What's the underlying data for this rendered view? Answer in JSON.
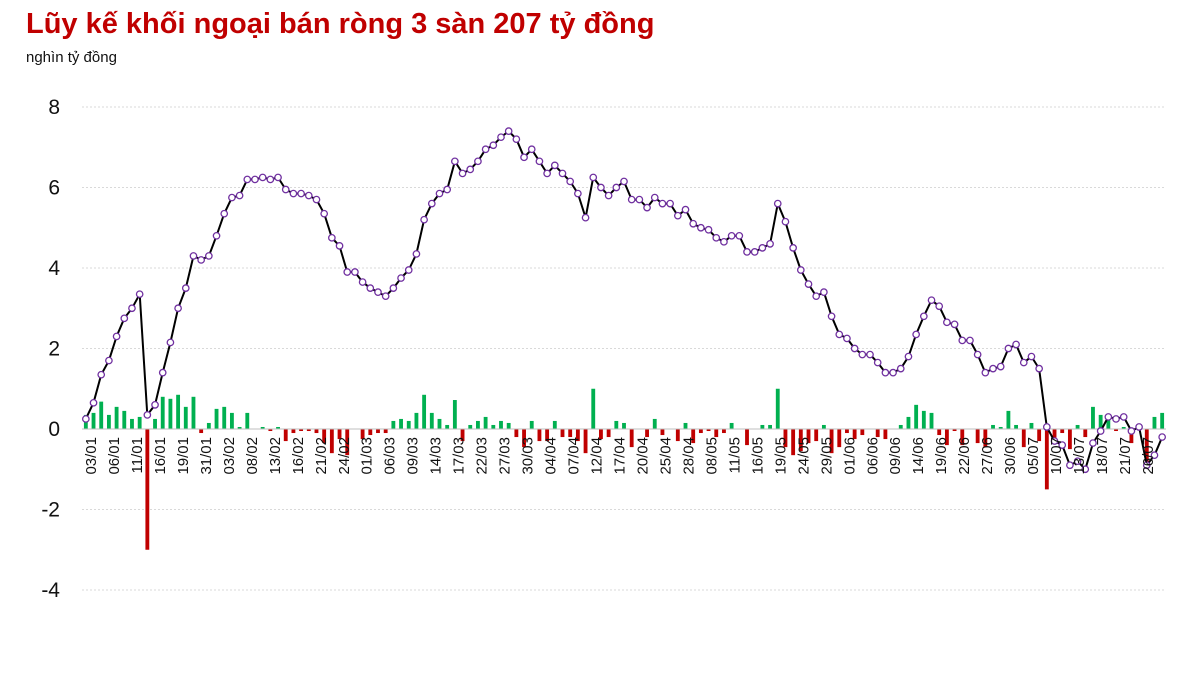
{
  "title": "Lũy kế khối ngoại bán ròng 3 sàn 207 tỷ đồng",
  "unit_label": "nghìn tỷ đồng",
  "colors": {
    "title": "#c00000",
    "line": "#000000",
    "marker_stroke": "#7030a0",
    "bar_positive": "#00b050",
    "bar_negative": "#c00000",
    "grid": "#d9d9d9"
  },
  "chart_data": {
    "type": "bar+line",
    "title": "Lũy kế khối ngoại bán ròng 3 sàn 207 tỷ đồng",
    "ylabel": "nghìn tỷ đồng",
    "ylim": [
      -4,
      8
    ],
    "yticks": [
      -4,
      -2,
      0,
      2,
      4,
      6,
      8
    ],
    "grid": true,
    "xticks": [
      "03/01",
      "06/01",
      "11/01",
      "16/01",
      "19/01",
      "31/01",
      "03/02",
      "08/02",
      "13/02",
      "16/02",
      "21/02",
      "24/02",
      "01/03",
      "06/03",
      "09/03",
      "14/03",
      "17/03",
      "22/03",
      "27/03",
      "30/03",
      "04/04",
      "07/04",
      "12/04",
      "17/04",
      "20/04",
      "25/04",
      "28/04",
      "08/05",
      "11/05",
      "16/05",
      "19/05",
      "24/05",
      "29/05",
      "01/06",
      "06/06",
      "09/06",
      "14/06",
      "19/06",
      "22/06",
      "27/06",
      "30/06",
      "05/07",
      "10/07",
      "13/07",
      "18/07",
      "21/07",
      "26/07"
    ],
    "series": [
      {
        "kind": "line",
        "values": [
          0.25,
          0.65,
          1.35,
          1.7,
          2.3,
          2.75,
          3.0,
          3.35,
          0.35,
          0.6,
          1.4,
          2.15,
          3.0,
          3.5,
          4.3,
          4.2,
          4.3,
          4.8,
          5.35,
          5.75,
          5.8,
          6.2,
          6.2,
          6.25,
          6.2,
          6.25,
          5.95,
          5.85,
          5.85,
          5.8,
          5.7,
          5.35,
          4.75,
          4.55,
          3.9,
          3.9,
          3.65,
          3.5,
          3.4,
          3.3,
          3.5,
          3.75,
          3.95,
          4.35,
          5.2,
          5.6,
          5.85,
          5.95,
          6.65,
          6.35,
          6.45,
          6.65,
          6.95,
          7.05,
          7.25,
          7.4,
          7.2,
          6.75,
          6.95,
          6.65,
          6.35,
          6.55,
          6.35,
          6.15,
          5.85,
          5.25,
          6.25,
          6.0,
          5.8,
          6.0,
          6.15,
          5.7,
          5.7,
          5.5,
          5.75,
          5.6,
          5.6,
          5.3,
          5.45,
          5.1,
          5.0,
          4.95,
          4.75,
          4.65,
          4.8,
          4.8,
          4.4,
          4.4,
          4.5,
          4.6,
          5.6,
          5.15,
          4.5,
          3.95,
          3.6,
          3.3,
          3.4,
          2.8,
          2.35,
          2.25,
          2.0,
          1.85,
          1.85,
          1.65,
          1.4,
          1.4,
          1.5,
          1.8,
          2.35,
          2.8,
          3.2,
          3.05,
          2.65,
          2.6,
          2.2,
          2.2,
          1.85,
          1.4,
          1.5,
          1.55,
          2.0,
          2.1,
          1.65,
          1.8,
          1.5,
          0.05,
          -0.3,
          -0.4,
          -0.9,
          -0.8,
          -1.0,
          -0.35,
          -0.05,
          0.3,
          0.25,
          0.3,
          -0.05,
          0.05,
          -0.9,
          -0.65,
          -0.2
        ]
      },
      {
        "kind": "bar",
        "values": [
          0.35,
          0.4,
          0.68,
          0.35,
          0.55,
          0.45,
          0.25,
          0.3,
          -3.0,
          0.25,
          0.8,
          0.75,
          0.85,
          0.55,
          0.8,
          -0.1,
          0.15,
          0.5,
          0.55,
          0.4,
          0.05,
          0.4,
          0.0,
          0.05,
          -0.05,
          0.05,
          -0.3,
          -0.1,
          -0.05,
          -0.05,
          -0.1,
          -0.35,
          -0.6,
          -0.25,
          -0.65,
          0.0,
          -0.25,
          -0.15,
          -0.1,
          -0.1,
          0.2,
          0.25,
          0.2,
          0.4,
          0.85,
          0.4,
          0.25,
          0.1,
          0.72,
          -0.3,
          0.1,
          0.2,
          0.3,
          0.1,
          0.2,
          0.15,
          -0.2,
          -0.45,
          0.2,
          -0.3,
          -0.3,
          0.2,
          -0.2,
          -0.2,
          -0.3,
          -0.6,
          1.0,
          -0.25,
          -0.2,
          0.2,
          0.15,
          -0.45,
          0.0,
          -0.2,
          0.25,
          -0.15,
          0.0,
          -0.3,
          0.15,
          -0.35,
          -0.1,
          -0.05,
          -0.2,
          -0.1,
          0.15,
          0.0,
          -0.4,
          0.0,
          0.1,
          0.1,
          1.0,
          -0.45,
          -0.65,
          -0.55,
          -0.35,
          -0.3,
          0.1,
          -0.6,
          -0.45,
          -0.1,
          -0.25,
          -0.15,
          0.0,
          -0.2,
          -0.25,
          0.0,
          0.1,
          0.3,
          0.6,
          0.45,
          0.4,
          -0.15,
          -0.4,
          -0.05,
          -0.4,
          0.0,
          -0.35,
          -0.45,
          0.1,
          0.05,
          0.45,
          0.1,
          -0.45,
          0.15,
          -0.3,
          -1.5,
          -0.35,
          -0.1,
          -0.5,
          0.1,
          -0.2,
          0.55,
          0.35,
          0.35,
          -0.05,
          0.05,
          -0.35,
          0.1,
          -0.95,
          0.3,
          0.4
        ]
      }
    ]
  }
}
